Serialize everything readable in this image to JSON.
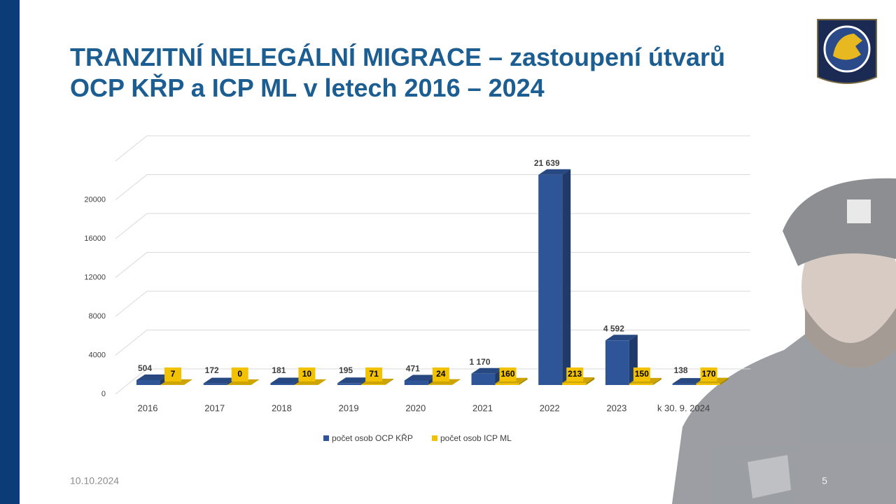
{
  "chart_data": {
    "type": "bar3d",
    "title": "TRANZITNÍ NELEGÁLNÍ MIGRACE – zastoupení útvarů OCP KŘP a ICP ML v letech 2016 – 2024",
    "categories": [
      "2016",
      "2017",
      "2018",
      "2019",
      "2020",
      "2021",
      "2022",
      "2023",
      "k 30. 9. 2024"
    ],
    "series": [
      {
        "name": "počet osob OCP KŘP",
        "color": "#2e5597",
        "values": [
          504,
          172,
          181,
          195,
          471,
          1170,
          21639,
          4592,
          138
        ],
        "value_labels": [
          "504",
          "172",
          "181",
          "195",
          "471",
          "1 170",
          "21 639",
          "4 592",
          "138"
        ]
      },
      {
        "name": "počet osob ICP ML",
        "color": "#f2c200",
        "values": [
          7,
          0,
          10,
          71,
          24,
          160,
          213,
          150,
          170
        ]
      }
    ],
    "ylim": [
      0,
      24000
    ],
    "yticks": [
      0,
      4000,
      8000,
      12000,
      16000,
      20000
    ],
    "grid": true,
    "legend": "bottom"
  },
  "footer": {
    "date": "10.10.2024",
    "page": "5"
  }
}
